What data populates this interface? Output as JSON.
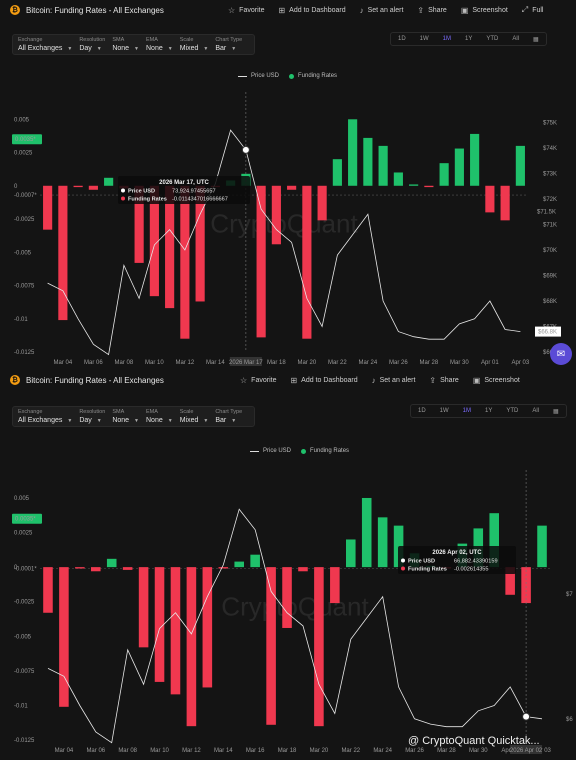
{
  "panel_top": {
    "title": "Bitcoin: Funding Rates - All Exchanges",
    "actions": [
      {
        "label": "Favorite",
        "icon": "star-icon",
        "glyph": "☆"
      },
      {
        "label": "Add to Dashboard",
        "icon": "dashboard-add-icon",
        "glyph": "⊞"
      },
      {
        "label": "Set an alert",
        "icon": "bell-icon",
        "glyph": "♪"
      },
      {
        "label": "Share",
        "icon": "share-icon",
        "glyph": "⇪"
      },
      {
        "label": "Screenshot",
        "icon": "camera-icon",
        "glyph": "▣"
      },
      {
        "label": "Full",
        "icon": "fullscreen-icon",
        "glyph": "⤢"
      }
    ],
    "controls": [
      {
        "label": "Exchange",
        "value": "All Exchanges"
      },
      {
        "label": "Resolution",
        "value": "Day"
      },
      {
        "label": "SMA",
        "value": "None"
      },
      {
        "label": "EMA",
        "value": "None"
      },
      {
        "label": "Scale",
        "value": "Mixed"
      },
      {
        "label": "Chart Type",
        "value": "Bar"
      }
    ],
    "ranges": [
      "1D",
      "1W",
      "1M",
      "1Y",
      "YTD",
      "All"
    ],
    "active_range": "1M",
    "legend": [
      "Price USD",
      "Funding Rates"
    ],
    "current_rate_label": "0.0035*",
    "baseline_label": "-0.0007*",
    "price_label": "$71.5K",
    "last_price_label": "$66.8K",
    "crosshair_date": "2026 Mar 17",
    "tooltip": {
      "title": "2026 Mar 17, UTC",
      "price_label": "Price USD",
      "price_value": "73,924.97455657",
      "rate_label": "Funding Rates",
      "rate_value": "-0.0114347016666667"
    },
    "watermark": "CryptoQuant",
    "chat_icon": "chat-icon"
  },
  "panel_bottom": {
    "title": "Bitcoin: Funding Rates - All Exchanges",
    "actions": [
      {
        "label": "Favorite",
        "icon": "star-icon",
        "glyph": "☆"
      },
      {
        "label": "Add to Dashboard",
        "icon": "dashboard-add-icon",
        "glyph": "⊞"
      },
      {
        "label": "Set an alert",
        "icon": "bell-icon",
        "glyph": "♪"
      },
      {
        "label": "Share",
        "icon": "share-icon",
        "glyph": "⇪"
      },
      {
        "label": "Screenshot",
        "icon": "camera-icon",
        "glyph": "▣"
      }
    ],
    "controls": [
      {
        "label": "Exchange",
        "value": "All Exchanges"
      },
      {
        "label": "Resolution",
        "value": "Day"
      },
      {
        "label": "SMA",
        "value": "None"
      },
      {
        "label": "EMA",
        "value": "None"
      },
      {
        "label": "Scale",
        "value": "Mixed"
      },
      {
        "label": "Chart Type",
        "value": "Bar"
      }
    ],
    "ranges": [
      "1D",
      "1W",
      "1M",
      "1Y",
      "YTD",
      "All"
    ],
    "active_range": "1M",
    "legend": [
      "Price USD",
      "Funding Rates"
    ],
    "current_rate_label": "0.0035*",
    "baseline_label": "-0.0001*",
    "crosshair_date": "2026 Apr 02",
    "tooltip": {
      "title": "2026 Apr 02, UTC",
      "price_label": "Price USD",
      "price_value": "66,882.43390159",
      "rate_label": "Funding Rates",
      "rate_value": "-0.002614355"
    },
    "watermark": "CryptoQuant",
    "footer": "@ CryptoQuant Quicktak..."
  },
  "colors": {
    "positive": "#1fc16b",
    "negative": "#f0384f",
    "price_line": "#e8e8e8",
    "current_rate_badge": "#1fc16b",
    "accent": "#7b6cff"
  },
  "chart_data": [
    {
      "type": "bar",
      "title": "Bitcoin: Funding Rates - All Exchanges",
      "x": [
        "Mar 03",
        "Mar 04",
        "Mar 05",
        "Mar 06",
        "Mar 07",
        "Mar 08",
        "Mar 09",
        "Mar 10",
        "Mar 11",
        "Mar 12",
        "Mar 13",
        "Mar 14",
        "Mar 15",
        "Mar 16",
        "Mar 17",
        "Mar 18",
        "Mar 19",
        "Mar 20",
        "Mar 21",
        "Mar 22",
        "Mar 23",
        "Mar 24",
        "Mar 25",
        "Mar 26",
        "Mar 27",
        "Mar 28",
        "Mar 29",
        "Mar 30",
        "Mar 31",
        "Apr 01",
        "Apr 02",
        "Apr 03"
      ],
      "x_tick_labels": [
        "Mar 04",
        "Mar 06",
        "Mar 08",
        "Mar 10",
        "Mar 12",
        "Mar 14",
        "Mar 16",
        "Mar 18",
        "Mar 20",
        "Mar 22",
        "Mar 24",
        "Mar 26",
        "Mar 28",
        "Mar 30",
        "Apr 01",
        "Apr 03"
      ],
      "series": [
        {
          "name": "Funding Rates",
          "axis": "left",
          "values": [
            -0.0033,
            -0.0101,
            -0.0001,
            -0.0003,
            0.0006,
            -0.0002,
            -0.0058,
            -0.0083,
            -0.0092,
            -0.0115,
            -0.0087,
            -0.0001,
            0.0004,
            0.0009,
            -0.0114,
            -0.0044,
            -0.0003,
            -0.0115,
            -0.0026,
            0.002,
            0.005,
            0.0036,
            0.003,
            0.001,
            0.0001,
            -0.0001,
            0.0017,
            0.0028,
            0.0039,
            -0.002,
            -0.0026,
            0.003
          ]
        },
        {
          "name": "Price USD",
          "axis": "right",
          "values": [
            68700,
            68400,
            67300,
            66300,
            65900,
            69400,
            68100,
            70200,
            70800,
            70000,
            71400,
            72600,
            74700,
            73924,
            71600,
            70800,
            70300,
            68100,
            67000,
            69800,
            70600,
            71400,
            68000,
            66800,
            66600,
            66500,
            66500,
            67100,
            67300,
            68000,
            66882,
            66800
          ]
        }
      ],
      "ylim_left": [
        -0.0125,
        0.0063
      ],
      "left_ticks": [
        "0.005",
        "0.0025",
        "0",
        "-0.0025",
        "-0.005",
        "-0.0075",
        "-0.01",
        "-0.0125"
      ],
      "ylim_right": [
        66000,
        75800
      ],
      "right_ticks": [
        "$75K",
        "$74K",
        "$73K",
        "$72K",
        "$71K",
        "$70K",
        "$69K",
        "$68K",
        "$67K",
        "$66K"
      ],
      "legend": [
        "Price USD",
        "Funding Rates"
      ],
      "legend_position": "top-center",
      "grid": false
    }
  ]
}
